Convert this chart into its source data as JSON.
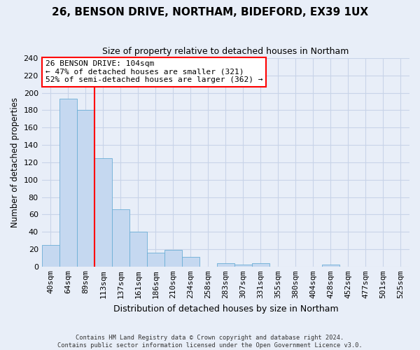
{
  "title": "26, BENSON DRIVE, NORTHAM, BIDEFORD, EX39 1UX",
  "subtitle": "Size of property relative to detached houses in Northam",
  "xlabel": "Distribution of detached houses by size in Northam",
  "ylabel": "Number of detached properties",
  "footnote1": "Contains HM Land Registry data © Crown copyright and database right 2024.",
  "footnote2": "Contains public sector information licensed under the Open Government Licence v3.0.",
  "bar_labels": [
    "40sqm",
    "64sqm",
    "89sqm",
    "113sqm",
    "137sqm",
    "161sqm",
    "186sqm",
    "210sqm",
    "234sqm",
    "258sqm",
    "283sqm",
    "307sqm",
    "331sqm",
    "355sqm",
    "380sqm",
    "404sqm",
    "428sqm",
    "452sqm",
    "477sqm",
    "501sqm",
    "525sqm"
  ],
  "bar_values": [
    25,
    193,
    180,
    125,
    66,
    40,
    16,
    19,
    11,
    0,
    4,
    2,
    4,
    0,
    0,
    0,
    2,
    0,
    0,
    0,
    0
  ],
  "bar_color": "#c5d8f0",
  "bar_edge_color": "#6baed6",
  "annotation_title": "26 BENSON DRIVE: 104sqm",
  "annotation_line1": "← 47% of detached houses are smaller (321)",
  "annotation_line2": "52% of semi-detached houses are larger (362) →",
  "vline_x": 2.5,
  "vline_color": "red",
  "ylim": [
    0,
    240
  ],
  "yticks": [
    0,
    20,
    40,
    60,
    80,
    100,
    120,
    140,
    160,
    180,
    200,
    220,
    240
  ],
  "background_color": "#e8eef8",
  "grid_color": "#c8d4e8",
  "annotation_box_color": "white",
  "annotation_box_edge": "red",
  "title_fontsize": 11,
  "subtitle_fontsize": 9,
  "xlabel_fontsize": 9,
  "ylabel_fontsize": 8.5,
  "tick_fontsize": 8,
  "annot_fontsize": 8
}
